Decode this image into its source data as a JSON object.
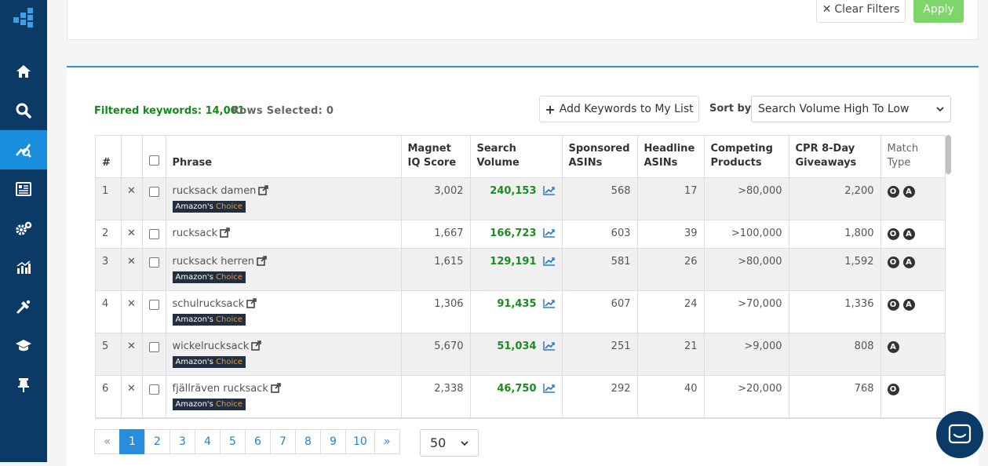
{
  "filters": {
    "clear_label": "Clear Filters",
    "apply_label": "Apply"
  },
  "summary": {
    "filtered_label": "Filtered keywords: 14,001",
    "rows_selected_label": "Rows Selected: 0"
  },
  "toolbar": {
    "add_label": "Add Keywords to My List",
    "sort_label": "Sort by:",
    "sort_value": "Search Volume High To Low"
  },
  "table": {
    "headers": {
      "num": "#",
      "phrase": "Phrase",
      "miq": "Magnet IQ Score",
      "sv": "Search Volume",
      "sponsored": "Sponsored ASINs",
      "headline": "Headline ASINs",
      "competing": "Competing Products",
      "cpr": "CPR 8-Day Giveaways",
      "match": "Match Type"
    },
    "badge": {
      "amazon": "Amazon's",
      "choice": "Choice"
    },
    "rows": [
      {
        "num": "1",
        "phrase": "rucksack damen",
        "choice": true,
        "miq": "3,002",
        "sv": "240,153",
        "sponsored": "568",
        "headline": "17",
        "competing": ">80,000",
        "cpr": "2,200",
        "match": [
          "O",
          "A"
        ]
      },
      {
        "num": "2",
        "phrase": "rucksack",
        "choice": false,
        "miq": "1,667",
        "sv": "166,723",
        "sponsored": "603",
        "headline": "39",
        "competing": ">100,000",
        "cpr": "1,800",
        "match": [
          "O",
          "A"
        ]
      },
      {
        "num": "3",
        "phrase": "rucksack herren",
        "choice": true,
        "miq": "1,615",
        "sv": "129,191",
        "sponsored": "581",
        "headline": "26",
        "competing": ">80,000",
        "cpr": "1,592",
        "match": [
          "O",
          "A"
        ]
      },
      {
        "num": "4",
        "phrase": "schulrucksack",
        "choice": true,
        "miq": "1,306",
        "sv": "91,435",
        "sponsored": "607",
        "headline": "24",
        "competing": ">70,000",
        "cpr": "1,336",
        "match": [
          "O",
          "A"
        ]
      },
      {
        "num": "5",
        "phrase": "wickelrucksack",
        "choice": true,
        "miq": "5,670",
        "sv": "51,034",
        "sponsored": "251",
        "headline": "21",
        "competing": ">9,000",
        "cpr": "808",
        "match": [
          "A"
        ]
      },
      {
        "num": "6",
        "phrase": "fjällräven rucksack",
        "choice": true,
        "miq": "2,338",
        "sv": "46,750",
        "sponsored": "292",
        "headline": "40",
        "competing": ">20,000",
        "cpr": "768",
        "match": [
          "O"
        ]
      }
    ]
  },
  "pagination": {
    "prev": "«",
    "pages": [
      "1",
      "2",
      "3",
      "4",
      "5",
      "6",
      "7",
      "8",
      "9",
      "10"
    ],
    "next": "»",
    "active": "1"
  },
  "per_page": "50",
  "colors": {
    "sidebar": "#0b3a67",
    "active_nav": "#1a8fe0",
    "accent_green": "#1d8a23",
    "apply_green": "#7ed66a",
    "link_blue": "#2a7fc9"
  }
}
